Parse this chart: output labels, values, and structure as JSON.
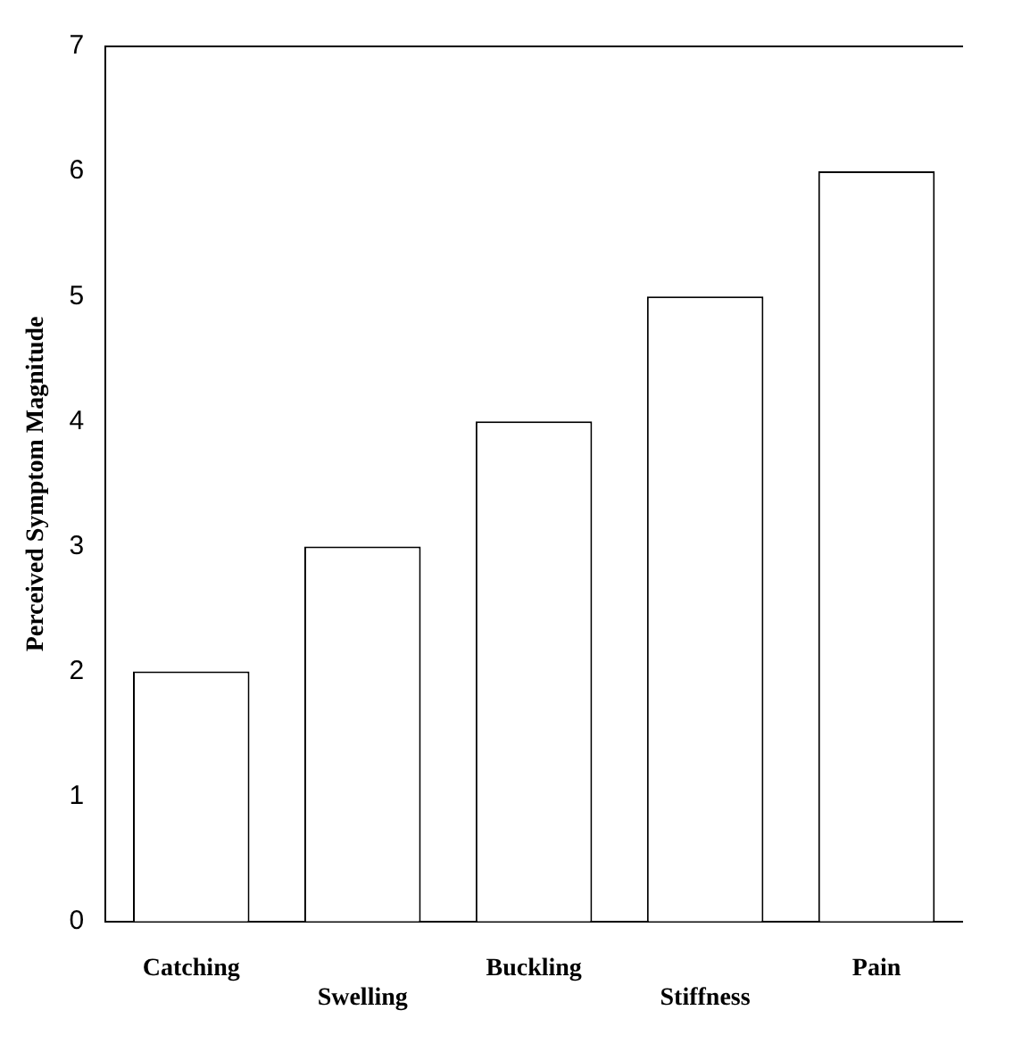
{
  "chart_data": {
    "type": "bar",
    "ylabel": "Perceived Symptom Magnitude",
    "categories": [
      "Catching",
      "Swelling",
      "Buckling",
      "Stiffness",
      "Pain"
    ],
    "values": [
      2,
      3,
      4,
      5,
      6
    ],
    "color": "#ffffff",
    "ylim": [
      0,
      7
    ],
    "yticks": [
      0,
      1,
      2,
      3,
      4,
      5,
      6,
      7
    ],
    "grid": false,
    "legend": false
  }
}
